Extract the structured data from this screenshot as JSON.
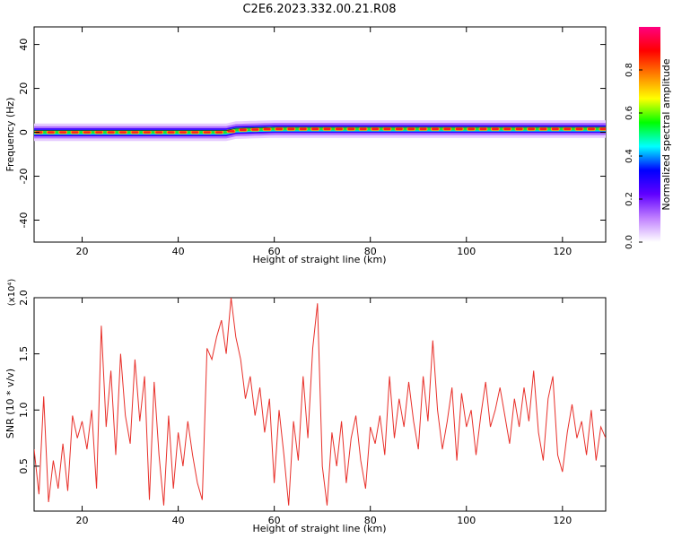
{
  "title": "C2E6.2023.332.00.21.R08",
  "colors": {
    "line": "#e8302a",
    "axis": "#000000"
  },
  "colorbar": {
    "label": "Normalized spectral amplitude",
    "ticks": [
      "0.0",
      "0.2",
      "0.4",
      "0.6",
      "0.8"
    ],
    "tick_values": [
      0.0,
      0.2,
      0.4,
      0.6,
      0.8
    ],
    "range": [
      0,
      1
    ],
    "colormap": [
      "#ffffff",
      "#c080ff",
      "#6000ff",
      "#0000ff",
      "#00ffff",
      "#00ff00",
      "#ffff00",
      "#ff8000",
      "#ff0000",
      "#ff0080"
    ]
  },
  "chart_data": [
    {
      "type": "heatmap",
      "xlabel": "Height of straight line (km)",
      "ylabel": "Frequency (Hz)",
      "xlim": [
        10,
        129
      ],
      "ylim": [
        -50,
        48
      ],
      "x_ticks": [
        20,
        40,
        60,
        80,
        100,
        120
      ],
      "x_tick_labels": [
        "20",
        "40",
        "60",
        "80",
        "100",
        "120"
      ],
      "y_ticks": [
        -40,
        -20,
        0,
        20,
        40
      ],
      "y_tick_labels": [
        "-40",
        "-20",
        "0",
        "20",
        "40"
      ],
      "band_center": [
        [
          10,
          0
        ],
        [
          20,
          0
        ],
        [
          30,
          0
        ],
        [
          40,
          0
        ],
        [
          50,
          0
        ],
        [
          52,
          1
        ],
        [
          60,
          1.5
        ],
        [
          70,
          1.5
        ],
        [
          80,
          1.5
        ],
        [
          90,
          1.5
        ],
        [
          100,
          1.5
        ],
        [
          110,
          1.5
        ],
        [
          120,
          1.5
        ],
        [
          129,
          1.5
        ]
      ]
    },
    {
      "type": "line",
      "xlabel": "Height of straight line (km)",
      "ylabel": "SNR (10 * v/v)",
      "y_multiplier": "(x10⁴)",
      "xlim": [
        10,
        129
      ],
      "ylim": [
        0.1,
        2.0
      ],
      "x_ticks": [
        20,
        40,
        60,
        80,
        100,
        120
      ],
      "x_tick_labels": [
        "20",
        "40",
        "60",
        "80",
        "100",
        "120"
      ],
      "y_ticks": [
        0.5,
        1.0,
        1.5,
        2.0
      ],
      "y_tick_labels": [
        "0.5",
        "1.0",
        "1.5",
        "2.0"
      ],
      "series": [
        {
          "x": [
            10,
            11,
            12,
            13,
            14,
            15,
            16,
            17,
            18,
            19,
            20,
            21,
            22,
            23,
            24,
            25,
            26,
            27,
            28,
            29,
            30,
            31,
            32,
            33,
            34,
            35,
            36,
            37,
            38,
            39,
            40,
            41,
            42,
            43,
            44,
            45,
            46,
            47,
            48,
            49,
            50,
            51,
            52,
            53,
            54,
            55,
            56,
            57,
            58,
            59,
            60,
            61,
            62,
            63,
            64,
            65,
            66,
            67,
            68,
            69,
            70,
            71,
            72,
            73,
            74,
            75,
            76,
            77,
            78,
            79,
            80,
            81,
            82,
            83,
            84,
            85,
            86,
            87,
            88,
            89,
            90,
            91,
            92,
            93,
            94,
            95,
            96,
            97,
            98,
            99,
            100,
            101,
            102,
            103,
            104,
            105,
            106,
            107,
            108,
            109,
            110,
            111,
            112,
            113,
            114,
            115,
            116,
            117,
            118,
            119,
            120,
            121,
            122,
            123,
            124,
            125,
            126,
            127,
            128,
            129
          ],
          "y": [
            0.65,
            0.25,
            1.12,
            0.18,
            0.55,
            0.3,
            0.7,
            0.28,
            0.95,
            0.75,
            0.9,
            0.65,
            1.0,
            0.3,
            1.75,
            0.85,
            1.35,
            0.6,
            1.5,
            0.95,
            0.7,
            1.45,
            0.9,
            1.3,
            0.2,
            1.25,
            0.6,
            0.15,
            0.95,
            0.3,
            0.8,
            0.5,
            0.9,
            0.6,
            0.35,
            0.2,
            1.55,
            1.45,
            1.65,
            1.8,
            1.5,
            2.0,
            1.65,
            1.45,
            1.1,
            1.3,
            0.95,
            1.2,
            0.8,
            1.1,
            0.35,
            1.0,
            0.6,
            0.15,
            0.9,
            0.55,
            1.3,
            0.75,
            1.55,
            1.95,
            0.5,
            0.15,
            0.8,
            0.5,
            0.9,
            0.35,
            0.75,
            0.95,
            0.55,
            0.3,
            0.85,
            0.7,
            0.95,
            0.6,
            1.3,
            0.75,
            1.1,
            0.85,
            1.25,
            0.9,
            0.65,
            1.3,
            0.9,
            1.62,
            1.0,
            0.65,
            0.9,
            1.2,
            0.55,
            1.15,
            0.85,
            1.0,
            0.6,
            0.95,
            1.25,
            0.85,
            1.0,
            1.2,
            0.95,
            0.7,
            1.1,
            0.85,
            1.2,
            0.9,
            1.35,
            0.8,
            0.55,
            1.1,
            1.3,
            0.6,
            0.45,
            0.8,
            1.05,
            0.75,
            0.9,
            0.6,
            1.0,
            0.55,
            0.85,
            0.75
          ]
        }
      ]
    }
  ]
}
